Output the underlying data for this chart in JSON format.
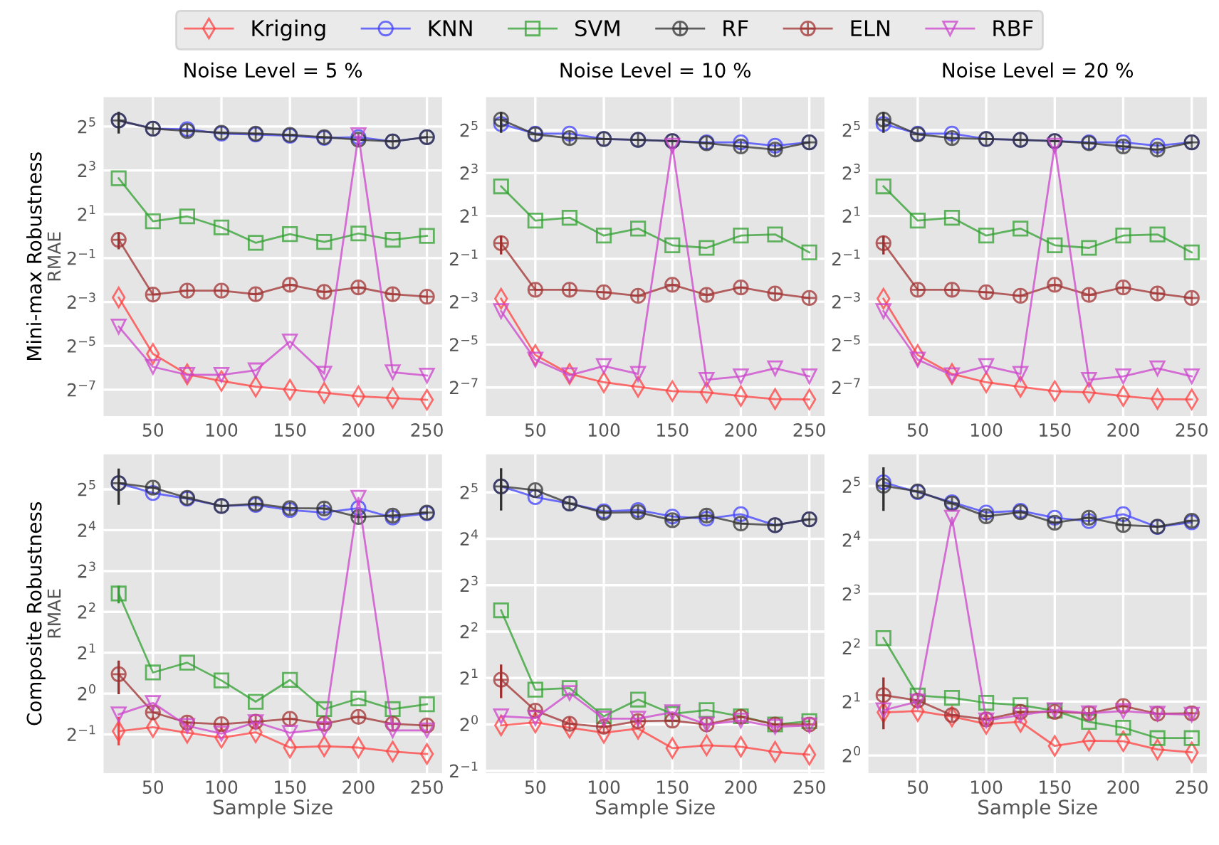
{
  "chart_data": [
    {
      "type": "line",
      "title": "Noise Level = 5 %",
      "ylabel": "RMAE",
      "annotations": [
        "Mini-max Robustness"
      ],
      "log": "y",
      "grid": true,
      "legend": "top",
      "xlim": [
        14,
        261
      ],
      "xticks": [
        50,
        100,
        150,
        200,
        250
      ],
      "ylim": [
        0.0034,
        81
      ],
      "yticks": [
        {
          "value": 0.0078125,
          "label": "2$^{−7}$"
        },
        {
          "value": 0.03125,
          "label": "2$^{−5}$"
        },
        {
          "value": 0.125,
          "label": "2$^{−3}$"
        },
        {
          "value": 0.5,
          "label": "2$^{−1}$"
        },
        {
          "value": 2,
          "label": "2$^{1}$"
        },
        {
          "value": 8,
          "label": "2$^{3}$"
        },
        {
          "value": 32,
          "label": "2$^{5}$"
        }
      ],
      "x": [
        25,
        50,
        75,
        100,
        125,
        150,
        175,
        200,
        225,
        250
      ],
      "series": [
        {
          "name": "Kriging",
          "color": "#ff4040",
          "marker": "diamond",
          "values": [
            0.144,
            0.0243,
            0.0127,
            0.0103,
            0.00861,
            0.00781,
            0.00709,
            0.00635,
            0.00601,
            0.00568
          ]
        },
        {
          "name": "KNN",
          "color": "#4040ff",
          "marker": "circle",
          "values": [
            38.8,
            29.9,
            29.4,
            25.6,
            24.9,
            23.9,
            22.3,
            22.9,
            20.0,
            22.9
          ]
        },
        {
          "name": "SVM",
          "color": "#30a030",
          "marker": "square",
          "values": [
            6.23,
            1.6,
            1.87,
            1.32,
            0.812,
            1.07,
            0.835,
            1.09,
            0.895,
            1.01
          ]
        },
        {
          "name": "RF",
          "color": "#303030",
          "marker": "cross",
          "values": [
            38.8,
            29.9,
            27.9,
            26.4,
            25.6,
            24.6,
            22.9,
            21.1,
            20.0,
            22.9
          ],
          "errors": [
            [
              25.6,
              51.3
            ],
            null,
            null,
            null,
            null,
            null,
            null,
            null,
            null,
            null
          ]
        },
        {
          "name": "ELN",
          "color": "#a03030",
          "marker": "cross",
          "values": [
            0.895,
            0.158,
            0.179,
            0.179,
            0.16,
            0.215,
            0.172,
            0.198,
            0.16,
            0.148
          ],
          "errors": [
            [
              0.66,
              1.13
            ],
            null,
            null,
            null,
            null,
            null,
            null,
            null,
            null,
            null
          ]
        },
        {
          "name": "RBF",
          "color": "#cc44cc",
          "marker": "triangle",
          "values": [
            0.0575,
            0.0161,
            0.0125,
            0.0125,
            0.0144,
            0.0359,
            0.013,
            24.3,
            0.0136,
            0.0122
          ]
        }
      ]
    },
    {
      "type": "line",
      "title": "Noise Level = 10 %",
      "log": "y",
      "grid": true,
      "xlim": [
        14,
        261
      ],
      "xticks": [
        50,
        100,
        150,
        200,
        250
      ],
      "ylim": [
        0.0031,
        93
      ],
      "yticks": [
        {
          "value": 0.0078125,
          "label": "2$^{−7}$"
        },
        {
          "value": 0.03125,
          "label": "2$^{−5}$"
        },
        {
          "value": 0.125,
          "label": "2$^{−3}$"
        },
        {
          "value": 0.5,
          "label": "2$^{−1}$"
        },
        {
          "value": 2,
          "label": "2$^{1}$"
        },
        {
          "value": 8,
          "label": "2$^{3}$"
        },
        {
          "value": 32,
          "label": "2$^{5}$"
        }
      ],
      "x": [
        25,
        50,
        75,
        100,
        125,
        150,
        175,
        200,
        225,
        250
      ],
      "series": [
        {
          "color": "#ff4040",
          "marker": "diamond",
          "values": [
            0.138,
            0.0223,
            0.0121,
            0.00923,
            0.00798,
            0.00694,
            0.00666,
            0.00592,
            0.00537,
            0.0053
          ]
        },
        {
          "color": "#4040ff",
          "marker": "circle",
          "values": [
            39.1,
            28.6,
            28.6,
            24.1,
            23.4,
            22.5,
            21.6,
            21.6,
            19.4,
            21.6
          ]
        },
        {
          "color": "#30a030",
          "marker": "square",
          "values": [
            5.2,
            1.72,
            1.89,
            1.06,
            1.33,
            0.774,
            0.712,
            1.06,
            1.1,
            0.616
          ]
        },
        {
          "color": "#303030",
          "marker": "cross",
          "values": [
            45.0,
            27.9,
            24.8,
            24.1,
            23.4,
            22.5,
            21.0,
            18.9,
            17.1,
            21.6
          ],
          "errors": [
            [
              29.4,
              58
            ],
            null,
            null,
            null,
            null,
            null,
            null,
            null,
            null,
            null
          ]
        },
        {
          "color": "#a03030",
          "marker": "cross",
          "values": [
            0.829,
            0.184,
            0.184,
            0.17,
            0.151,
            0.216,
            0.156,
            0.198,
            0.163,
            0.141
          ],
          "errors": [
            [
              0.574,
              1.06
            ],
            null,
            null,
            null,
            null,
            null,
            null,
            null,
            null,
            null
          ]
        },
        {
          "color": "#cc44cc",
          "marker": "triangle",
          "values": [
            0.0921,
            0.0192,
            0.0116,
            0.0156,
            0.0121,
            19.4,
            0.01,
            0.0112,
            0.0145,
            0.0112
          ]
        }
      ]
    },
    {
      "type": "line",
      "title": "Noise Level = 20 %",
      "log": "y",
      "grid": true,
      "xlim": [
        14,
        261
      ],
      "xticks": [
        50,
        100,
        150,
        200,
        250
      ],
      "ylim": [
        0.0031,
        93
      ],
      "yticks": [
        {
          "value": 0.0078125,
          "label": "2$^{−7}$"
        },
        {
          "value": 0.03125,
          "label": "2$^{−5}$"
        },
        {
          "value": 0.125,
          "label": "2$^{−3}$"
        },
        {
          "value": 0.5,
          "label": "2$^{−1}$"
        },
        {
          "value": 2,
          "label": "2$^{1}$"
        },
        {
          "value": 8,
          "label": "2$^{3}$"
        },
        {
          "value": 32,
          "label": "2$^{5}$"
        }
      ],
      "x": [
        25,
        50,
        75,
        100,
        125,
        150,
        175,
        200,
        225,
        250
      ],
      "series": [
        {
          "color": "#ff4040",
          "marker": "diamond",
          "values": [
            0.138,
            0.0223,
            0.0121,
            0.00923,
            0.00798,
            0.00694,
            0.00666,
            0.00592,
            0.00537,
            0.0053
          ]
        },
        {
          "color": "#4040ff",
          "marker": "circle",
          "values": [
            39.1,
            28.6,
            28.6,
            24.1,
            23.4,
            22.5,
            21.6,
            21.6,
            19.4,
            21.6
          ]
        },
        {
          "color": "#30a030",
          "marker": "square",
          "values": [
            5.2,
            1.72,
            1.89,
            1.06,
            1.33,
            0.774,
            0.712,
            1.06,
            1.1,
            0.616
          ]
        },
        {
          "color": "#303030",
          "marker": "cross",
          "values": [
            45.0,
            27.9,
            24.8,
            24.1,
            23.4,
            22.5,
            21.0,
            18.9,
            17.1,
            21.6
          ],
          "errors": [
            [
              29.4,
              58
            ],
            null,
            null,
            null,
            null,
            null,
            null,
            null,
            null,
            null
          ]
        },
        {
          "color": "#a03030",
          "marker": "cross",
          "values": [
            0.829,
            0.184,
            0.184,
            0.17,
            0.151,
            0.216,
            0.156,
            0.198,
            0.163,
            0.141
          ],
          "errors": [
            [
              0.574,
              1.06
            ],
            null,
            null,
            null,
            null,
            null,
            null,
            null,
            null,
            null
          ]
        },
        {
          "color": "#cc44cc",
          "marker": "triangle",
          "values": [
            0.0921,
            0.0192,
            0.0116,
            0.0156,
            0.0121,
            19.4,
            0.01,
            0.0112,
            0.0145,
            0.0112
          ]
        }
      ]
    },
    {
      "type": "line",
      "xlabel": "Sample Size",
      "ylabel": "RMAE",
      "annotations": [
        "Composite Robustness"
      ],
      "log": "y",
      "grid": true,
      "xlim": [
        14,
        261
      ],
      "xticks": [
        50,
        100,
        150,
        200,
        250
      ],
      "ylim": [
        0.259,
        58
      ],
      "yticks": [
        {
          "value": 0.5,
          "label": "2$^{−1}$"
        },
        {
          "value": 1,
          "label": "2$^{0}$"
        },
        {
          "value": 2,
          "label": "2$^{1}$"
        },
        {
          "value": 4,
          "label": "2$^{2}$"
        },
        {
          "value": 8,
          "label": "2$^{3}$"
        },
        {
          "value": 16,
          "label": "2$^{4}$"
        },
        {
          "value": 32,
          "label": "2$^{5}$"
        }
      ],
      "x": [
        25,
        50,
        75,
        100,
        125,
        150,
        175,
        200,
        225,
        250
      ],
      "series": [
        {
          "color": "#ff4040",
          "marker": "diamond",
          "values": [
            0.528,
            0.566,
            0.514,
            0.473,
            0.518,
            0.4,
            0.409,
            0.4,
            0.374,
            0.359
          ],
          "errors": [
            [
              0.415,
              0.674
            ],
            null,
            null,
            null,
            null,
            null,
            null,
            null,
            null,
            null
          ]
        },
        {
          "color": "#4040ff",
          "marker": "circle",
          "values": [
            35.5,
            30.1,
            27.3,
            24.1,
            24.6,
            22.5,
            21.6,
            23.3,
            19.8,
            21.3
          ]
        },
        {
          "color": "#30a030",
          "marker": "square",
          "values": [
            5.46,
            1.43,
            1.69,
            1.25,
            0.871,
            1.26,
            0.768,
            0.92,
            0.768,
            0.835
          ],
          "errors": [
            [
              4.63,
              6.23
            ],
            null,
            null,
            null,
            null,
            null,
            null,
            null,
            null,
            null
          ]
        },
        {
          "color": "#303030",
          "marker": "cross",
          "values": [
            35.5,
            32.9,
            27.7,
            24.1,
            25.1,
            23.3,
            23.1,
            20.0,
            20.5,
            21.6
          ],
          "errors": [
            [
              24.6,
              45.6
            ],
            null,
            null,
            null,
            null,
            null,
            null,
            null,
            null,
            null
          ]
        },
        {
          "color": "#a03030",
          "marker": "cross",
          "values": [
            1.39,
            0.727,
            0.611,
            0.595,
            0.62,
            0.651,
            0.599,
            0.674,
            0.599,
            0.582
          ],
          "errors": [
            [
              0.99,
              1.75
            ],
            null,
            null,
            null,
            null,
            null,
            null,
            null,
            null,
            null
          ]
        },
        {
          "color": "#cc44cc",
          "marker": "triangle",
          "values": [
            0.702,
            0.853,
            0.578,
            0.507,
            0.616,
            0.514,
            0.547,
            27.7,
            0.536,
            0.536
          ]
        }
      ]
    },
    {
      "type": "line",
      "xlabel": "Sample Size",
      "log": "y",
      "grid": true,
      "xlim": [
        14,
        261
      ],
      "xticks": [
        50,
        100,
        150,
        200,
        250
      ],
      "ylim": [
        0.483,
        56.5
      ],
      "yticks": [
        {
          "value": 0.5,
          "label": "2$^{−1}$"
        },
        {
          "value": 1,
          "label": "2$^{0}$"
        },
        {
          "value": 2,
          "label": "2$^{1}$"
        },
        {
          "value": 4,
          "label": "2$^{2}$"
        },
        {
          "value": 8,
          "label": "2$^{3}$"
        },
        {
          "value": 16,
          "label": "2$^{4}$"
        },
        {
          "value": 32,
          "label": "2$^{5}$"
        }
      ],
      "x": [
        25,
        50,
        75,
        100,
        125,
        150,
        175,
        200,
        225,
        250
      ],
      "series": [
        {
          "color": "#ff4040",
          "marker": "diamond",
          "values": [
            0.986,
            1.03,
            0.953,
            0.883,
            0.939,
            0.702,
            0.732,
            0.717,
            0.664,
            0.637
          ]
        },
        {
          "color": "#4040ff",
          "marker": "circle",
          "values": [
            35.0,
            29.8,
            27.1,
            24.1,
            24.6,
            22.3,
            21.6,
            23.1,
            19.6,
            21.4
          ]
        },
        {
          "color": "#30a030",
          "marker": "square",
          "values": [
            5.5,
            1.68,
            1.72,
            1.13,
            1.45,
            1.17,
            1.24,
            1.13,
            1.0,
            1.05
          ]
        },
        {
          "color": "#303030",
          "marker": "cross",
          "values": [
            35.0,
            33.1,
            27.1,
            23.6,
            23.8,
            21.1,
            22.6,
            20.1,
            19.6,
            21.4
          ],
          "errors": [
            [
              24.4,
              45.9
            ],
            null,
            null,
            null,
            null,
            null,
            null,
            null,
            null,
            null
          ]
        },
        {
          "color": "#a03030",
          "marker": "cross",
          "values": [
            1.95,
            1.23,
            1.01,
            0.966,
            1.05,
            1.06,
            1.0,
            1.12,
            1.0,
            1.0
          ],
          "errors": [
            [
              1.48,
              2.45
            ],
            null,
            null,
            null,
            null,
            null,
            null,
            null,
            null,
            null
          ]
        },
        {
          "color": "#cc44cc",
          "marker": "triangle",
          "values": [
            1.13,
            1.1,
            1.6,
            1.09,
            1.09,
            1.2,
            1.0,
            1.06,
            0.966,
            0.986
          ]
        }
      ]
    },
    {
      "type": "line",
      "xlabel": "Sample Size",
      "log": "y",
      "grid": true,
      "xlim": [
        14,
        261
      ],
      "xticks": [
        50,
        100,
        150,
        200,
        250
      ],
      "ylim": [
        0.796,
        48.2
      ],
      "yticks": [
        {
          "value": 1,
          "label": "2$^{0}$"
        },
        {
          "value": 2,
          "label": "2$^{1}$"
        },
        {
          "value": 4,
          "label": "2$^{2}$"
        },
        {
          "value": 8,
          "label": "2$^{3}$"
        },
        {
          "value": 16,
          "label": "2$^{4}$"
        },
        {
          "value": 32,
          "label": "2$^{5}$"
        }
      ],
      "x": [
        25,
        50,
        75,
        100,
        125,
        150,
        175,
        200,
        225,
        250
      ],
      "series": [
        {
          "color": "#ff4040",
          "marker": "diamond",
          "values": [
            1.74,
            1.77,
            1.65,
            1.5,
            1.54,
            1.13,
            1.21,
            1.2,
            1.08,
            1.04
          ]
        },
        {
          "color": "#4040ff",
          "marker": "circle",
          "values": [
            33.6,
            29.6,
            26.0,
            22.8,
            23.3,
            21.3,
            20.4,
            22.3,
            18.9,
            20.1
          ]
        },
        {
          "color": "#30a030",
          "marker": "square",
          "values": [
            4.53,
            2.16,
            2.1,
            1.97,
            1.91,
            1.78,
            1.54,
            1.43,
            1.25,
            1.25
          ]
        },
        {
          "color": "#303030",
          "marker": "cross",
          "values": [
            32.2,
            29.9,
            25.6,
            21.7,
            22.9,
            20.0,
            21.3,
            19.4,
            19.0,
            20.5
          ],
          "errors": [
            [
              23.3,
              40.8
            ],
            null,
            null,
            null,
            null,
            null,
            null,
            null,
            null,
            null
          ]
        },
        {
          "color": "#a03030",
          "marker": "cross",
          "values": [
            2.17,
            2.03,
            1.68,
            1.59,
            1.75,
            1.75,
            1.72,
            1.89,
            1.71,
            1.72
          ],
          "errors": [
            [
              1.4,
              2.73
            ],
            null,
            null,
            null,
            null,
            null,
            null,
            null,
            null,
            null
          ]
        },
        {
          "color": "#cc44cc",
          "marker": "triangle",
          "values": [
            1.79,
            2.0,
            21.3,
            1.57,
            1.68,
            1.79,
            1.72,
            1.77,
            1.71,
            1.69
          ]
        }
      ]
    }
  ]
}
